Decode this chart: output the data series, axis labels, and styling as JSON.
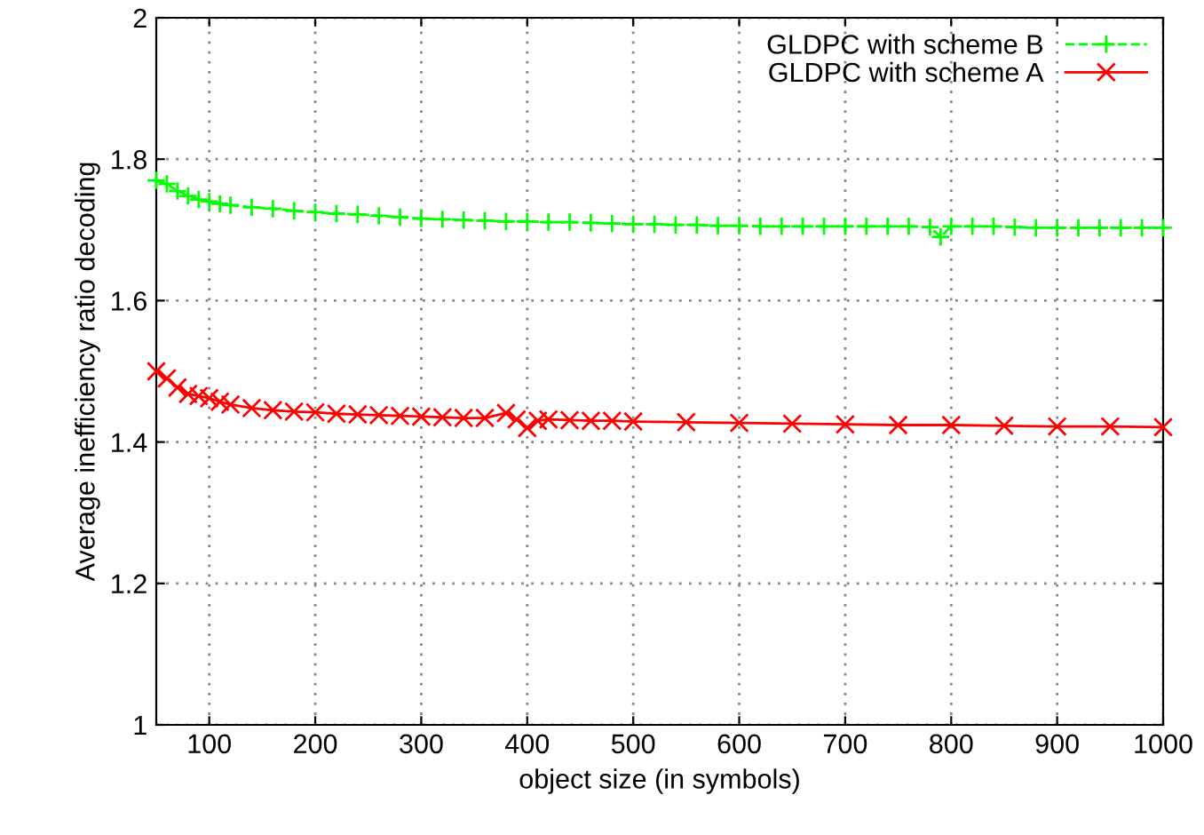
{
  "chart_data": {
    "type": "line",
    "xlabel": "object size (in symbols)",
    "ylabel": "Average inefficiency ratio decoding",
    "xlim": [
      50,
      1000
    ],
    "ylim": [
      1,
      2
    ],
    "xticks": [
      100,
      200,
      300,
      400,
      500,
      600,
      700,
      800,
      900,
      1000
    ],
    "yticks": [
      1,
      1.2,
      1.4,
      1.6,
      1.8,
      2
    ],
    "grid": true,
    "legend": "top right",
    "series": [
      {
        "name": "GLDPC with scheme B",
        "color": "#00ff00",
        "line_style": "dashed",
        "marker": "cross",
        "x": [
          50,
          60,
          70,
          80,
          90,
          100,
          110,
          120,
          140,
          160,
          180,
          200,
          220,
          240,
          260,
          280,
          300,
          320,
          340,
          360,
          380,
          400,
          420,
          440,
          460,
          480,
          500,
          520,
          540,
          560,
          580,
          600,
          620,
          640,
          660,
          680,
          700,
          720,
          740,
          760,
          780,
          790,
          800,
          820,
          840,
          860,
          880,
          900,
          920,
          940,
          960,
          980,
          1000
        ],
        "values": [
          1.77,
          1.765,
          1.755,
          1.748,
          1.743,
          1.74,
          1.737,
          1.735,
          1.732,
          1.73,
          1.727,
          1.725,
          1.723,
          1.722,
          1.72,
          1.718,
          1.716,
          1.715,
          1.714,
          1.713,
          1.712,
          1.712,
          1.711,
          1.711,
          1.71,
          1.709,
          1.708,
          1.708,
          1.707,
          1.707,
          1.706,
          1.706,
          1.705,
          1.705,
          1.705,
          1.705,
          1.705,
          1.705,
          1.705,
          1.705,
          1.704,
          1.69,
          1.705,
          1.705,
          1.705,
          1.704,
          1.703,
          1.703,
          1.703,
          1.703,
          1.703,
          1.703,
          1.703
        ]
      },
      {
        "name": "GLDPC with scheme A",
        "color": "#ff0000",
        "line_style": "solid",
        "marker": "x",
        "x": [
          50,
          60,
          70,
          80,
          90,
          100,
          110,
          120,
          140,
          160,
          180,
          200,
          220,
          240,
          260,
          280,
          300,
          320,
          340,
          360,
          380,
          390,
          400,
          410,
          420,
          440,
          460,
          480,
          500,
          550,
          600,
          650,
          700,
          750,
          800,
          850,
          900,
          950,
          1000
        ],
        "values": [
          1.5,
          1.49,
          1.477,
          1.468,
          1.465,
          1.462,
          1.457,
          1.453,
          1.448,
          1.445,
          1.443,
          1.442,
          1.44,
          1.439,
          1.438,
          1.437,
          1.436,
          1.435,
          1.434,
          1.434,
          1.441,
          1.432,
          1.42,
          1.43,
          1.432,
          1.431,
          1.43,
          1.43,
          1.429,
          1.428,
          1.427,
          1.426,
          1.425,
          1.424,
          1.424,
          1.423,
          1.422,
          1.422,
          1.421
        ]
      }
    ]
  }
}
